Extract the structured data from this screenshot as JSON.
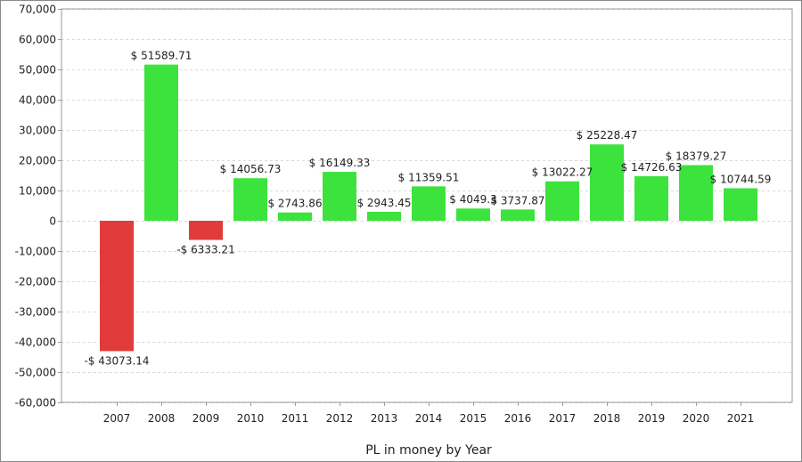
{
  "chart_data": {
    "type": "bar",
    "title": "",
    "xlabel": "PL in money by Year",
    "ylabel": "",
    "ylim": [
      -60000,
      70000
    ],
    "yticks": [
      70000,
      60000,
      50000,
      40000,
      30000,
      20000,
      10000,
      0,
      -10000,
      -20000,
      -30000,
      -40000,
      -50000,
      -60000
    ],
    "ytick_labels": [
      "70,000",
      "60,000",
      "50,000",
      "40,000",
      "30,000",
      "20,000",
      "10,000",
      "0",
      "-10,000",
      "-20,000",
      "-30,000",
      "-40,000",
      "-50,000",
      "-60,000"
    ],
    "categories": [
      "2007",
      "2008",
      "2009",
      "2010",
      "2011",
      "2012",
      "2013",
      "2014",
      "2015",
      "2016",
      "2017",
      "2018",
      "2019",
      "2020",
      "2021"
    ],
    "values": [
      -43073.14,
      51589.71,
      -6333.21,
      14056.73,
      2743.86,
      16149.33,
      2943.45,
      11359.51,
      4049.3,
      3737.87,
      13022.27,
      25228.47,
      14726.63,
      18379.27,
      10744.59
    ],
    "data_labels": [
      "-$ 43073.14",
      "$ 51589.71",
      "-$ 6333.21",
      "$ 14056.73",
      "$ 2743.86",
      "$ 16149.33",
      "$ 2943.45",
      "$ 11359.51",
      "$ 4049.3",
      "$ 3737.87",
      "$ 13022.27",
      "$ 25228.47",
      "$ 14726.63",
      "$ 18379.27",
      "$ 10744.59"
    ],
    "grid": true,
    "legend": "none",
    "colors": {
      "positive": "#3de33d",
      "negative": "#e23b3b",
      "grid": "#d9d9d9",
      "axis": "#999999",
      "text": "#222222"
    }
  }
}
